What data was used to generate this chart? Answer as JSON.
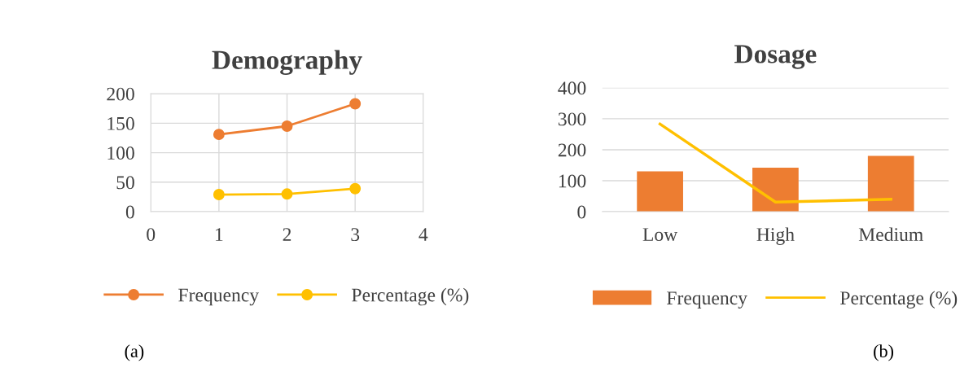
{
  "chart_data": [
    {
      "type": "line",
      "title": "Demography",
      "x": [
        1,
        2,
        3
      ],
      "xlim": [
        0,
        4
      ],
      "xticks": [
        0,
        1,
        2,
        3,
        4
      ],
      "ylim": [
        0,
        200
      ],
      "yticks": [
        0,
        50,
        100,
        150,
        200
      ],
      "grid": true,
      "legend": "bottom",
      "marker": "circle",
      "line_style": "solid",
      "series": [
        {
          "name": "Frequency",
          "color": "#ed7d31",
          "values": [
            131,
            145,
            183
          ]
        },
        {
          "name": "Percentage (%)",
          "color": "#ffc000",
          "values": [
            29,
            30,
            39
          ]
        }
      ],
      "annotations": [
        "(a)"
      ]
    },
    {
      "type": "bar",
      "title": "Dosage",
      "categories": [
        "Low",
        "High",
        "Medium"
      ],
      "ylim": [
        0,
        400
      ],
      "yticks": [
        0,
        100,
        200,
        300,
        400
      ],
      "grid": "y",
      "legend": "bottom",
      "series": [
        {
          "name": "Frequency",
          "color": "#ed7d31",
          "values": [
            130,
            142,
            180
          ]
        },
        {
          "name": "Percentage (%)",
          "type": "line",
          "color": "#ffc000",
          "values": [
            283,
            31,
            40
          ]
        }
      ],
      "annotations": [
        "(b)"
      ]
    }
  ]
}
